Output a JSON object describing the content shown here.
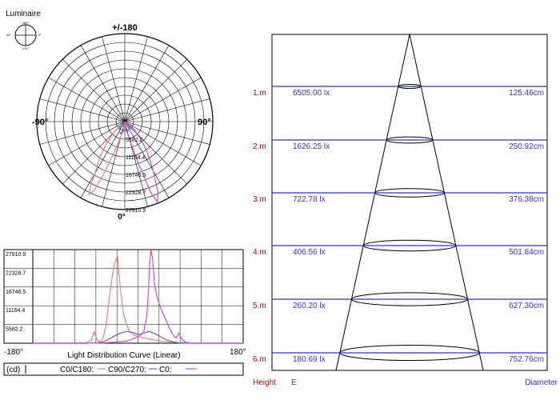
{
  "colors": {
    "c0": "#f08080",
    "c90": "#6a5acd",
    "c0b": "#d44ae0",
    "level": "#3333cc",
    "height_label": "#cc0000",
    "grid": "#000000"
  },
  "luminaire": {
    "title": "Luminaire",
    "icon_labels": [
      "180°",
      "90°",
      "0°",
      "270°"
    ]
  },
  "polar": {
    "top_label": "+/-180",
    "left_label": "-90°",
    "right_label": "90°",
    "bottom_label": "0°",
    "radial_labels": [
      "5582.2",
      "11164.4",
      "16746.5",
      "22328.7",
      "27910.9"
    ]
  },
  "linear": {
    "title": "Light Distribution Curve (Linear)",
    "x_min_label": "-180°",
    "x_max_label": "180°",
    "y_tick_labels": [
      "27910.9",
      "22328.7",
      "16746.5",
      "11164.4",
      "5582.2"
    ],
    "legend_unit": "(cd)",
    "legend_items": [
      "C0/C180:",
      "C90/C270:",
      "C0:"
    ]
  },
  "cone": {
    "footer_height": "Height",
    "footer_e": "E",
    "footer_diameter": "Diameter",
    "rows": [
      {
        "height": "1.m",
        "e": "6505.00 lx",
        "diameter": "125.46cm"
      },
      {
        "height": "2.m",
        "e": "1626.25 lx",
        "diameter": "250.92cm"
      },
      {
        "height": "3.m",
        "e": "722.78 lx",
        "diameter": "376.38cm"
      },
      {
        "height": "4.m",
        "e": "406.56 lx",
        "diameter": "501.84cm"
      },
      {
        "height": "5.m",
        "e": "260.20 lx",
        "diameter": "627.30cm"
      },
      {
        "height": "6.m",
        "e": "180.69 lx",
        "diameter": "752.76cm"
      }
    ]
  },
  "chart_data": [
    {
      "type": "polar",
      "title": "",
      "angle_labels": [
        "+/-180",
        "-90°",
        "90°",
        "0°"
      ],
      "radial_ticks": [
        5582.2,
        11164.4,
        16746.5,
        22328.7,
        27910.9
      ],
      "rmax": 27910.9,
      "series": [
        {
          "name": "C0/C180",
          "angles": [
            -50,
            -45,
            -40,
            -35,
            -30,
            -28,
            -26,
            -24,
            -22,
            -20,
            -18,
            -15,
            -10,
            -5,
            0,
            5,
            10,
            15,
            20,
            25,
            30,
            40,
            60,
            90
          ],
          "values": [
            2000,
            5000,
            9000,
            14000,
            19000,
            23000,
            25800,
            24000,
            18000,
            12000,
            8000,
            5000,
            3000,
            2200,
            2000,
            1800,
            1200,
            900,
            700,
            500,
            400,
            300,
            200,
            100
          ]
        },
        {
          "name": "C90/C270",
          "angles": [
            -90,
            -70,
            -50,
            -40,
            -30,
            -20,
            -10,
            0,
            10,
            20,
            30,
            40,
            50,
            70,
            90
          ],
          "values": [
            100,
            400,
            1000,
            2300,
            3500,
            4000,
            3200,
            2600,
            2900,
            3000,
            2800,
            2000,
            1000,
            400,
            100
          ]
        },
        {
          "name": "C0",
          "angles": [
            -90,
            -60,
            -30,
            -10,
            0,
            5,
            10,
            15,
            18,
            20,
            22,
            25,
            30,
            35,
            40,
            50,
            60,
            90
          ],
          "values": [
            100,
            200,
            400,
            1000,
            1800,
            2000,
            2600,
            6000,
            14000,
            24000,
            27500,
            25000,
            18000,
            13000,
            9000,
            4000,
            1200,
            100
          ]
        }
      ]
    },
    {
      "type": "line",
      "title": "Light Distribution Curve (Linear)",
      "xlim": [
        -180,
        180
      ],
      "ylim": [
        0,
        27910.9
      ],
      "y_ticks": [
        5582.2,
        11164.4,
        16746.5,
        22328.7,
        27910.9
      ],
      "series": [
        {
          "name": "C0/C180",
          "x": [
            -180,
            -120,
            -90,
            -80,
            -75,
            -70,
            -65,
            -60,
            -55,
            -50,
            -45,
            -40,
            -35,
            -30,
            -26,
            -22,
            -18,
            -15,
            -10,
            -5,
            0,
            10,
            20,
            30,
            40,
            50,
            60,
            70,
            80,
            90,
            180
          ],
          "y": [
            0,
            0,
            100,
            800,
            3500,
            800,
            400,
            1500,
            5000,
            12000,
            19000,
            24000,
            26000,
            16000,
            10000,
            7000,
            5000,
            3500,
            2800,
            2300,
            2000,
            1600,
            1200,
            900,
            600,
            400,
            300,
            200,
            100,
            0,
            0
          ]
        },
        {
          "name": "C90/C270",
          "x": [
            -180,
            -90,
            -70,
            -60,
            -50,
            -40,
            -30,
            -20,
            -10,
            0,
            10,
            20,
            30,
            40,
            50,
            60,
            70,
            90,
            180
          ],
          "y": [
            0,
            0,
            100,
            400,
            1200,
            2200,
            3000,
            3500,
            3300,
            2600,
            3000,
            3500,
            2800,
            1800,
            900,
            400,
            100,
            0,
            0
          ]
        },
        {
          "name": "C0",
          "x": [
            -180,
            -90,
            -60,
            -40,
            -20,
            -10,
            0,
            5,
            10,
            15,
            18,
            20,
            22,
            25,
            28,
            32,
            36,
            40,
            45,
            50,
            55,
            60,
            65,
            70,
            75,
            80,
            90,
            180
          ],
          "y": [
            0,
            0,
            100,
            300,
            600,
            1200,
            2000,
            2400,
            3500,
            8000,
            16000,
            24000,
            27800,
            25000,
            18000,
            14000,
            12000,
            10000,
            8000,
            6000,
            4000,
            2500,
            1500,
            3000,
            1200,
            400,
            0,
            0
          ]
        }
      ]
    }
  ]
}
